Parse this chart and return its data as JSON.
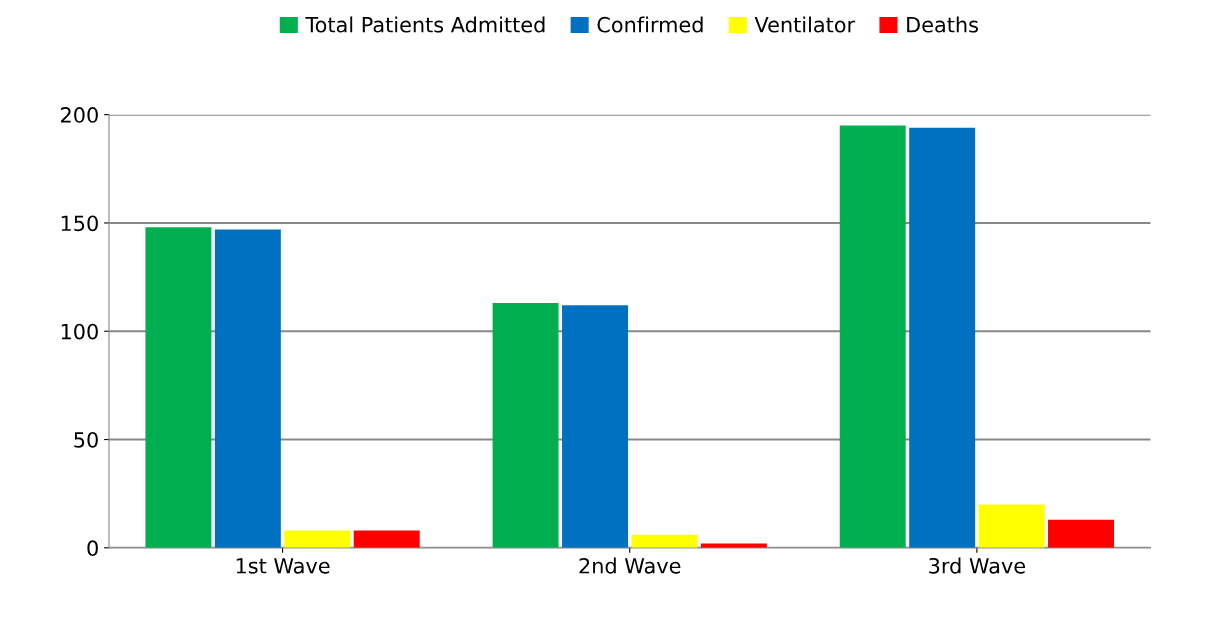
{
  "chart_data": {
    "type": "bar",
    "categories": [
      "1st Wave",
      "2nd Wave",
      "3rd Wave"
    ],
    "series": [
      {
        "name": "Total Patients Admitted",
        "color": "#00b050",
        "values": [
          148,
          113,
          195
        ]
      },
      {
        "name": "Confirmed",
        "color": "#0070c0",
        "values": [
          147,
          112,
          194
        ]
      },
      {
        "name": "Ventilator",
        "color": "#ffff00",
        "values": [
          8,
          6,
          20
        ]
      },
      {
        "name": "Deaths",
        "color": "#ff0000",
        "values": [
          8,
          2,
          13
        ]
      }
    ],
    "ylim": [
      0,
      200
    ],
    "yticks": [
      0,
      50,
      100,
      150,
      200
    ],
    "grid": "y",
    "legend": "top"
  }
}
